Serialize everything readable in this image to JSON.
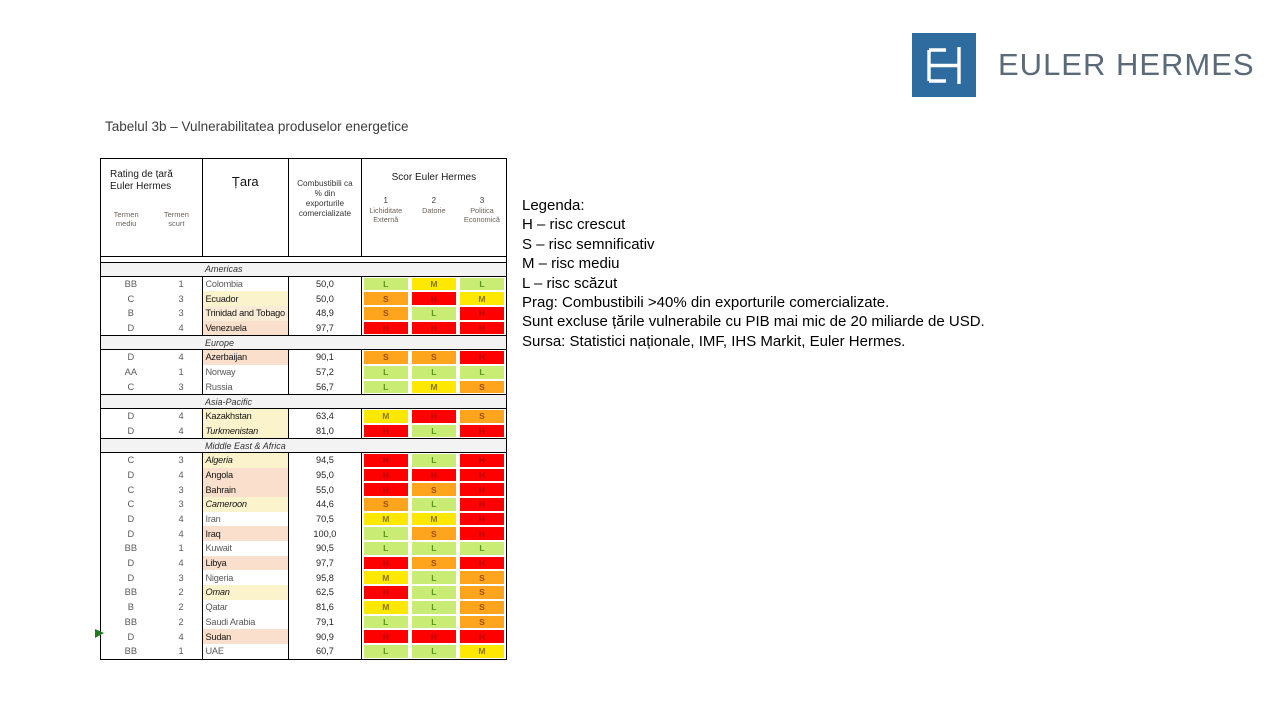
{
  "logo": {
    "monogram": "EH",
    "brand": "EULER HERMES",
    "square_color": "#2e6b9f",
    "text_color": "#5a6a79"
  },
  "title": "Tabelul 3b – Vulnerabilitatea produselor energetice",
  "table": {
    "headers": {
      "rating": "Rating de țară Euler Hermes",
      "rating_sub": [
        "Termen mediu",
        "Termen scurt"
      ],
      "country": "Țara",
      "fuels": "Combustibili ca % din exporturile comercializate",
      "score": "Scor Euler Hermes",
      "score_sub": [
        {
          "num": "1",
          "label": "Lichiditate Externă"
        },
        {
          "num": "2",
          "label": "Datorie"
        },
        {
          "num": "3",
          "label": "Politica Economică"
        }
      ]
    },
    "palette": {
      "risk_bg": {
        "L": "#c9ec74",
        "M": "#ffe800",
        "S": "#ffa41d",
        "H": "#fe0000"
      },
      "risk_text": {
        "L": "#55971f",
        "M": "#847a00",
        "S": "#9c4f00",
        "H": "#bf0000"
      },
      "row_bg": {
        "white": "#ffffff",
        "cream": "#fbf3cc",
        "peach": "#f9dfcc",
        "peach_light": "#fbecd7"
      },
      "country_text_on_color": "#141414",
      "country_text_on_white": "#595959"
    },
    "sections": [
      {
        "region": "Americas",
        "countries": [
          {
            "medium": "BB",
            "short": "1",
            "name": "Colombia",
            "bg": "white",
            "italic": false,
            "value": "50,0",
            "scores": [
              "L",
              "M",
              "L"
            ]
          },
          {
            "medium": "C",
            "short": "3",
            "name": "Ecuador",
            "bg": "cream",
            "italic": false,
            "value": "50,0",
            "scores": [
              "S",
              "H",
              "M"
            ]
          },
          {
            "medium": "B",
            "short": "3",
            "name": "Trinidad and Tobago",
            "bg": "peach_light",
            "italic": false,
            "value": "48,9",
            "scores": [
              "S",
              "L",
              "H"
            ]
          },
          {
            "medium": "D",
            "short": "4",
            "name": "Venezuela",
            "bg": "peach",
            "italic": false,
            "value": "97,7",
            "scores": [
              "H",
              "H",
              "H"
            ]
          }
        ]
      },
      {
        "region": "Europe",
        "countries": [
          {
            "medium": "D",
            "short": "4",
            "name": "Azerbaijan",
            "bg": "peach",
            "italic": false,
            "value": "90,1",
            "scores": [
              "S",
              "S",
              "H"
            ]
          },
          {
            "medium": "AA",
            "short": "1",
            "name": "Norway",
            "bg": "white",
            "italic": false,
            "value": "57,2",
            "scores": [
              "L",
              "L",
              "L"
            ]
          },
          {
            "medium": "C",
            "short": "3",
            "name": "Russia",
            "bg": "white",
            "italic": false,
            "value": "56,7",
            "scores": [
              "L",
              "M",
              "S"
            ]
          }
        ]
      },
      {
        "region": "Asia-Pacific",
        "countries": [
          {
            "medium": "D",
            "short": "4",
            "name": "Kazakhstan",
            "bg": "cream",
            "italic": false,
            "value": "63,4",
            "scores": [
              "M",
              "H",
              "S"
            ]
          },
          {
            "medium": "D",
            "short": "4",
            "name": "Turkmenistan",
            "bg": "cream",
            "italic": true,
            "value": "81,0",
            "scores": [
              "H",
              "L",
              "H"
            ]
          }
        ]
      },
      {
        "region": "Middle East & Africa",
        "countries": [
          {
            "medium": "C",
            "short": "3",
            "name": "Algeria",
            "bg": "cream",
            "italic": true,
            "value": "94,5",
            "scores": [
              "H",
              "L",
              "H"
            ]
          },
          {
            "medium": "D",
            "short": "4",
            "name": "Angola",
            "bg": "peach",
            "italic": false,
            "value": "95,0",
            "scores": [
              "H",
              "H",
              "H"
            ]
          },
          {
            "medium": "C",
            "short": "3",
            "name": "Bahrain",
            "bg": "peach",
            "italic": false,
            "value": "55,0",
            "scores": [
              "H",
              "S",
              "H"
            ]
          },
          {
            "medium": "C",
            "short": "3",
            "name": "Cameroon",
            "bg": "cream",
            "italic": true,
            "value": "44,6",
            "scores": [
              "S",
              "L",
              "H"
            ]
          },
          {
            "medium": "D",
            "short": "4",
            "name": "Iran",
            "bg": "white",
            "italic": false,
            "value": "70,5",
            "scores": [
              "M",
              "M",
              "H"
            ]
          },
          {
            "medium": "D",
            "short": "4",
            "name": "Iraq",
            "bg": "peach",
            "italic": false,
            "value": "100,0",
            "scores": [
              "L",
              "S",
              "H"
            ]
          },
          {
            "medium": "BB",
            "short": "1",
            "name": "Kuwait",
            "bg": "white",
            "italic": false,
            "value": "90,5",
            "scores": [
              "L",
              "L",
              "L"
            ]
          },
          {
            "medium": "D",
            "short": "4",
            "name": "Libya",
            "bg": "peach",
            "italic": false,
            "value": "97,7",
            "scores": [
              "H",
              "S",
              "H"
            ]
          },
          {
            "medium": "D",
            "short": "3",
            "name": "Nigeria",
            "bg": "white",
            "italic": false,
            "value": "95,8",
            "scores": [
              "M",
              "L",
              "S"
            ]
          },
          {
            "medium": "BB",
            "short": "2",
            "name": "Oman",
            "bg": "cream",
            "italic": true,
            "value": "62,5",
            "scores": [
              "H",
              "L",
              "S"
            ]
          },
          {
            "medium": "B",
            "short": "2",
            "name": "Qatar",
            "bg": "white",
            "italic": false,
            "value": "81,6",
            "scores": [
              "M",
              "L",
              "S"
            ]
          },
          {
            "medium": "BB",
            "short": "2",
            "name": "Saudi Arabia",
            "bg": "white",
            "italic": false,
            "value": "79,1",
            "scores": [
              "L",
              "L",
              "S"
            ]
          },
          {
            "medium": "D",
            "short": "4",
            "name": "Sudan",
            "bg": "peach",
            "italic": false,
            "value": "90,9",
            "scores": [
              "H",
              "H",
              "H"
            ]
          },
          {
            "medium": "BB",
            "short": "1",
            "name": "UAE",
            "bg": "white",
            "italic": false,
            "value": "60,7",
            "scores": [
              "L",
              "L",
              "M"
            ]
          }
        ]
      }
    ]
  },
  "legend": {
    "lines": [
      "Legenda:",
      "H – risc crescut",
      "S – risc semnificativ",
      "M – risc mediu",
      "L – risc scăzut",
      "Prag: Combustibili >40% din exporturile comercializate.",
      "Sunt excluse țările vulnerabile cu PIB mai mic de 20 miliarde de USD.",
      "Sursa: Statistici naționale, IMF, IHS Markit, Euler Hermes."
    ]
  },
  "marker_color": "#217a21"
}
